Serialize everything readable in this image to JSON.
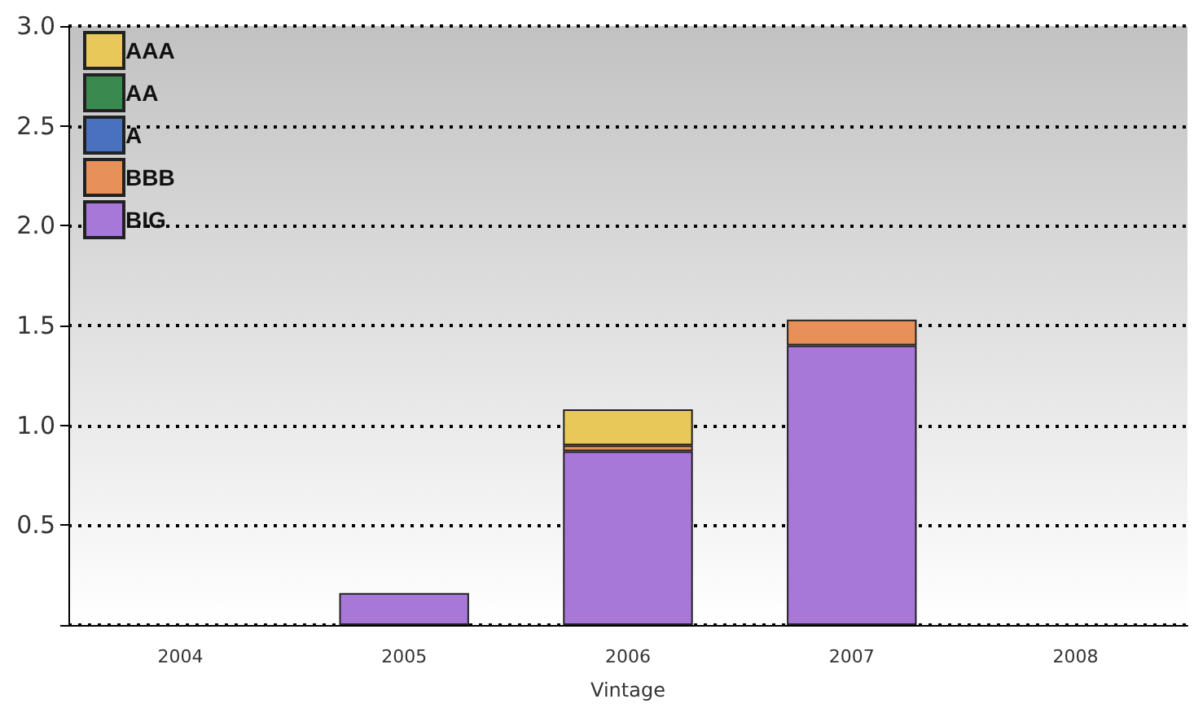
{
  "chart_data": {
    "type": "bar",
    "stacked": true,
    "xlabel": "Vintage",
    "categories": [
      "2004",
      "2005",
      "2006",
      "2007",
      "2008"
    ],
    "series": [
      {
        "name": "BIG",
        "color": "#a878d8",
        "values": [
          0,
          0.16,
          0.87,
          1.4,
          0
        ]
      },
      {
        "name": "BBB",
        "color": "#e8905a",
        "values": [
          0,
          0,
          0.03,
          0.13,
          0
        ]
      },
      {
        "name": "A",
        "color": "#4a70c0",
        "values": [
          0,
          0,
          0,
          0,
          0
        ]
      },
      {
        "name": "AA",
        "color": "#3a8a50",
        "values": [
          0,
          0,
          0,
          0,
          0
        ]
      },
      {
        "name": "AAA",
        "color": "#e8c858",
        "values": [
          0,
          0,
          0.18,
          0,
          0
        ]
      }
    ],
    "ylim": [
      0,
      3.0
    ],
    "yticks": [
      {
        "value": 0,
        "label": null
      },
      {
        "value": 0.5,
        "label": "0.5"
      },
      {
        "value": 1.0,
        "label": "1.0"
      },
      {
        "value": 1.5,
        "label": "1.5"
      },
      {
        "value": 2.0,
        "label": "2.0"
      },
      {
        "value": 2.5,
        "label": "2.5"
      },
      {
        "value": 3.0,
        "label": "3.0"
      }
    ],
    "grid": "y",
    "legend": "top left"
  }
}
